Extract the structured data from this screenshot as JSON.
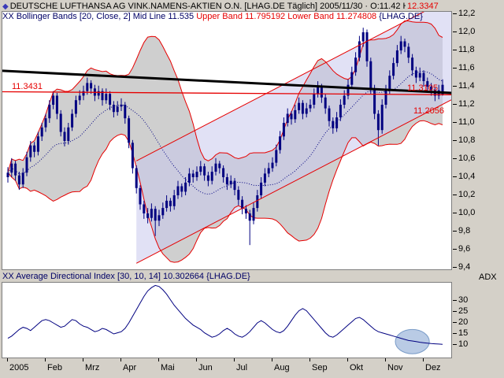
{
  "header": {
    "symbol_marker": "◆",
    "title": "DEUTSCHE LUFTHANSA AG VINK.NAMENS-AKTIEN O.N. [LHAG.DE  Täglich] 2005/11/30 · O:11.42 H:11.48 L:11.3",
    "indicator_line": {
      "prefix": "XX Bollinger Bands [20, Close, 2] Mid Line 11.535 ",
      "bands_text": "Upper Band 11.795192 Lower Band 11.274808 ",
      "suffix": "{LHAG.DE}"
    }
  },
  "adx_header": {
    "text": "XX Average Directional Index [30, 10, 14] 10.302664 {LHAG.DE}",
    "axis_label": "ADX"
  },
  "price_axis": {
    "labels": [
      "12,2",
      "12,0",
      "11,8",
      "11,6",
      "11,4",
      "11,2",
      "11,0",
      "10,8",
      "10,6",
      "10,4",
      "10,2",
      "10,0",
      "9,8",
      "9,6",
      "9,4"
    ],
    "values": [
      12.2,
      12.0,
      11.8,
      11.6,
      11.4,
      11.2,
      11.0,
      10.8,
      10.6,
      10.4,
      10.2,
      10.0,
      9.8,
      9.6,
      9.4
    ]
  },
  "adx_axis": {
    "labels": [
      "30",
      "25",
      "20",
      "15",
      "10"
    ],
    "values": [
      30,
      25,
      20,
      15,
      10
    ]
  },
  "time_axis": {
    "labels": [
      "2005",
      "Feb",
      "Mrz",
      "Apr",
      "Mai",
      "Jun",
      "Jul",
      "Aug",
      "Sep",
      "Okt",
      "Nov",
      "Dez"
    ]
  },
  "annotations": {
    "hline": {
      "left_label": "11.3431",
      "right_label": "11.3105",
      "start": 11.3431,
      "end": 11.3105
    },
    "channel": {
      "start_bar": 34,
      "upper_start": 10.58,
      "lower_start": 9.45,
      "upper_end": 12.3347,
      "lower_end": 11.2056,
      "label_upper": "12.3347",
      "label_lower": "11.2056"
    },
    "trendline": {
      "start": 11.575,
      "end": 11.33
    },
    "adx_ellipse": {
      "center_bar": 107,
      "center_value": 11.5,
      "rx_bars": 4.5,
      "ry_value": 5.5
    }
  },
  "colors": {
    "bars": "#000080",
    "band_fill": "#8c8c8c",
    "bollinger_edge": "#e60000",
    "mid_line": "#000080",
    "channel_line": "#e60000",
    "channel_fill": "#c8c8ec",
    "trendline": "#000000",
    "hline": "#e60000",
    "adx_line": "#000080",
    "ellipse": "#8aa8d4",
    "red_label": "#e60000"
  },
  "chart_data": [
    {
      "type": "candlestick",
      "title": "DEUTSCHE LUFTHANSA AG VINK.NAMENS-AKTIEN O.N. [LHAG.DE Täglich]",
      "last_bar": {
        "date": "2005/11/30",
        "open": 11.42,
        "high": 11.48,
        "low": 11.3,
        "close": 11.31
      },
      "indicator": {
        "name": "Bollinger Bands",
        "params": "[20, Close, 2]",
        "mid_line": 11.535,
        "upper_band": 11.795192,
        "lower_band": 11.274808
      },
      "ylim": [
        9.4,
        12.2
      ],
      "yticks": [
        12.2,
        12.0,
        11.8,
        11.6,
        11.4,
        11.2,
        11.0,
        10.8,
        10.6,
        10.4,
        10.2,
        10.0,
        9.8,
        9.6,
        9.4
      ],
      "x_labels": [
        "2005",
        "Feb",
        "Mrz",
        "Apr",
        "Mai",
        "Jun",
        "Jul",
        "Aug",
        "Sep",
        "Okt",
        "Nov",
        "Dez"
      ],
      "bars_per_label": 10,
      "ohlc": [
        [
          10.4,
          10.51,
          10.34,
          10.45
        ],
        [
          10.45,
          10.61,
          10.4,
          10.55
        ],
        [
          10.55,
          10.58,
          10.36,
          10.42
        ],
        [
          10.42,
          10.46,
          10.26,
          10.32
        ],
        [
          10.32,
          10.5,
          10.28,
          10.45
        ],
        [
          10.45,
          10.68,
          10.41,
          10.62
        ],
        [
          10.62,
          10.8,
          10.57,
          10.75
        ],
        [
          10.75,
          10.79,
          10.62,
          10.68
        ],
        [
          10.68,
          10.9,
          10.64,
          10.85
        ],
        [
          10.85,
          11.0,
          10.8,
          10.95
        ],
        [
          10.95,
          11.1,
          10.9,
          11.05
        ],
        [
          11.05,
          11.25,
          11.0,
          11.2
        ],
        [
          11.2,
          11.35,
          11.15,
          11.3
        ],
        [
          11.3,
          11.33,
          11.04,
          11.1
        ],
        [
          11.1,
          11.14,
          10.85,
          10.9
        ],
        [
          10.9,
          10.95,
          10.74,
          10.8
        ],
        [
          10.8,
          11.0,
          10.76,
          10.95
        ],
        [
          10.95,
          11.15,
          10.91,
          11.1
        ],
        [
          11.1,
          11.3,
          11.06,
          11.25
        ],
        [
          11.25,
          11.36,
          11.2,
          11.3
        ],
        [
          11.3,
          11.41,
          11.25,
          11.35
        ],
        [
          11.35,
          11.5,
          11.31,
          11.44
        ],
        [
          11.44,
          11.47,
          11.32,
          11.38
        ],
        [
          11.38,
          11.42,
          11.24,
          11.3
        ],
        [
          11.3,
          11.41,
          11.26,
          11.35
        ],
        [
          11.35,
          11.38,
          11.19,
          11.25
        ],
        [
          11.25,
          11.38,
          11.21,
          11.32
        ],
        [
          11.32,
          11.35,
          11.14,
          11.2
        ],
        [
          11.2,
          11.24,
          11.06,
          11.12
        ],
        [
          11.12,
          11.24,
          11.08,
          11.18
        ],
        [
          11.18,
          11.27,
          11.13,
          11.2
        ],
        [
          11.2,
          11.23,
          10.99,
          11.05
        ],
        [
          11.05,
          11.08,
          10.72,
          10.78
        ],
        [
          10.78,
          10.81,
          10.44,
          10.5
        ],
        [
          10.5,
          10.53,
          10.22,
          10.28
        ],
        [
          10.28,
          10.31,
          10.04,
          10.1
        ],
        [
          10.1,
          10.14,
          9.94,
          10.0
        ],
        [
          10.0,
          10.06,
          9.89,
          9.95
        ],
        [
          9.95,
          10.11,
          9.91,
          10.05
        ],
        [
          10.05,
          10.08,
          9.75,
          9.92
        ],
        [
          9.92,
          10.04,
          9.86,
          9.98
        ],
        [
          9.98,
          10.12,
          9.94,
          10.06
        ],
        [
          10.06,
          10.2,
          10.02,
          10.14
        ],
        [
          10.14,
          10.17,
          10.02,
          10.08
        ],
        [
          10.08,
          10.26,
          10.04,
          10.2
        ],
        [
          10.2,
          10.36,
          10.16,
          10.3
        ],
        [
          10.3,
          10.33,
          10.18,
          10.24
        ],
        [
          10.24,
          10.4,
          10.2,
          10.34
        ],
        [
          10.34,
          10.5,
          10.3,
          10.44
        ],
        [
          10.44,
          10.48,
          10.34,
          10.4
        ],
        [
          10.4,
          10.52,
          10.36,
          10.46
        ],
        [
          10.46,
          10.58,
          10.42,
          10.52
        ],
        [
          10.52,
          10.55,
          10.36,
          10.42
        ],
        [
          10.42,
          10.46,
          10.3,
          10.36
        ],
        [
          10.36,
          10.52,
          10.32,
          10.46
        ],
        [
          10.46,
          10.61,
          10.42,
          10.55
        ],
        [
          10.55,
          10.58,
          10.44,
          10.5
        ],
        [
          10.5,
          10.53,
          10.34,
          10.4
        ],
        [
          10.4,
          10.44,
          10.26,
          10.32
        ],
        [
          10.32,
          10.42,
          10.28,
          10.36
        ],
        [
          10.36,
          10.39,
          10.2,
          10.26
        ],
        [
          10.26,
          10.3,
          10.09,
          10.15
        ],
        [
          10.15,
          10.19,
          9.99,
          10.05
        ],
        [
          10.05,
          10.09,
          9.94,
          10.0
        ],
        [
          10.0,
          10.04,
          9.65,
          9.92
        ],
        [
          9.92,
          10.12,
          9.88,
          10.06
        ],
        [
          10.06,
          10.26,
          10.02,
          10.2
        ],
        [
          10.2,
          10.4,
          10.16,
          10.34
        ],
        [
          10.34,
          10.5,
          10.3,
          10.44
        ],
        [
          10.44,
          10.56,
          10.4,
          10.5
        ],
        [
          10.5,
          10.62,
          10.46,
          10.56
        ],
        [
          10.56,
          10.76,
          10.52,
          10.7
        ],
        [
          10.7,
          10.91,
          10.66,
          10.85
        ],
        [
          10.85,
          11.06,
          10.81,
          11.0
        ],
        [
          11.0,
          11.16,
          10.96,
          11.1
        ],
        [
          11.1,
          11.13,
          10.98,
          11.04
        ],
        [
          11.04,
          11.2,
          11.0,
          11.14
        ],
        [
          11.14,
          11.28,
          11.1,
          11.22
        ],
        [
          11.22,
          11.25,
          11.04,
          11.1
        ],
        [
          11.1,
          11.22,
          11.06,
          11.16
        ],
        [
          11.16,
          11.26,
          11.12,
          11.2
        ],
        [
          11.2,
          11.38,
          11.16,
          11.32
        ],
        [
          11.32,
          11.46,
          11.28,
          11.4
        ],
        [
          11.4,
          11.43,
          11.22,
          11.28
        ],
        [
          11.28,
          11.32,
          11.1,
          11.16
        ],
        [
          11.16,
          11.19,
          10.96,
          11.02
        ],
        [
          11.02,
          11.06,
          10.88,
          10.94
        ],
        [
          10.94,
          11.12,
          10.9,
          11.06
        ],
        [
          11.06,
          11.26,
          11.02,
          11.2
        ],
        [
          11.2,
          11.36,
          11.16,
          11.3
        ],
        [
          11.3,
          11.48,
          11.26,
          11.42
        ],
        [
          11.42,
          11.62,
          11.38,
          11.56
        ],
        [
          11.56,
          11.78,
          11.52,
          11.72
        ],
        [
          11.72,
          11.96,
          11.68,
          11.9
        ],
        [
          11.9,
          12.05,
          11.84,
          12.0
        ],
        [
          12.0,
          12.03,
          11.62,
          11.68
        ],
        [
          11.68,
          11.72,
          11.32,
          11.38
        ],
        [
          11.38,
          11.42,
          11.04,
          11.1
        ],
        [
          11.1,
          11.14,
          10.75,
          10.92
        ],
        [
          10.92,
          11.26,
          10.88,
          11.2
        ],
        [
          11.2,
          11.42,
          11.16,
          11.36
        ],
        [
          11.36,
          11.58,
          11.32,
          11.52
        ],
        [
          11.52,
          11.72,
          11.48,
          11.66
        ],
        [
          11.66,
          11.86,
          11.62,
          11.8
        ],
        [
          11.8,
          11.96,
          11.76,
          11.9
        ],
        [
          11.9,
          11.93,
          11.78,
          11.84
        ],
        [
          11.84,
          11.88,
          11.66,
          11.72
        ],
        [
          11.72,
          11.76,
          11.52,
          11.58
        ],
        [
          11.58,
          11.62,
          11.44,
          11.5
        ],
        [
          11.5,
          11.61,
          11.46,
          11.55
        ],
        [
          11.55,
          11.58,
          11.4,
          11.46
        ],
        [
          11.46,
          11.5,
          11.34,
          11.4
        ],
        [
          11.4,
          11.44,
          11.3,
          11.36
        ],
        [
          11.36,
          11.39,
          11.24,
          11.3
        ],
        [
          11.3,
          11.42,
          11.26,
          11.36
        ],
        [
          11.42,
          11.48,
          11.3,
          11.31
        ]
      ]
    },
    {
      "type": "line",
      "name": "Average Directional Index",
      "params": "[30, 10, 14]",
      "last_value": 10.302664,
      "ylim": [
        3.5,
        38
      ],
      "yticks": [
        30,
        25,
        20,
        15,
        10
      ],
      "values": [
        13,
        14,
        15.5,
        17,
        18,
        17.5,
        16.5,
        18,
        19.5,
        21,
        21.5,
        21,
        20,
        19,
        18,
        18.5,
        20,
        21.5,
        21,
        19.5,
        18.5,
        18,
        17,
        16,
        16.5,
        17.5,
        17,
        16,
        15,
        15.5,
        16,
        17.5,
        20,
        23,
        26,
        29,
        32,
        34.5,
        36,
        37,
        36.5,
        35,
        33,
        30.5,
        28,
        26,
        24,
        22,
        20.5,
        19,
        18,
        17,
        15.5,
        14.5,
        13.5,
        14,
        15,
        16.5,
        17.5,
        16.5,
        15,
        14,
        13.5,
        14.5,
        16,
        18,
        20,
        21,
        20,
        18.5,
        17,
        16,
        15.5,
        16.5,
        18.5,
        21,
        23.5,
        25.5,
        26.5,
        25.5,
        23.5,
        21.5,
        19.5,
        17.5,
        15.5,
        14,
        13.5,
        14.5,
        16,
        17.5,
        19,
        20.5,
        22,
        22.5,
        21.5,
        20,
        18.5,
        17,
        16,
        15.5,
        15,
        14.5,
        14,
        13.5,
        13,
        12.5,
        12,
        11.8,
        11.5,
        11.2,
        11,
        10.8,
        10.6,
        10.5,
        10.4,
        10.3
      ]
    }
  ]
}
